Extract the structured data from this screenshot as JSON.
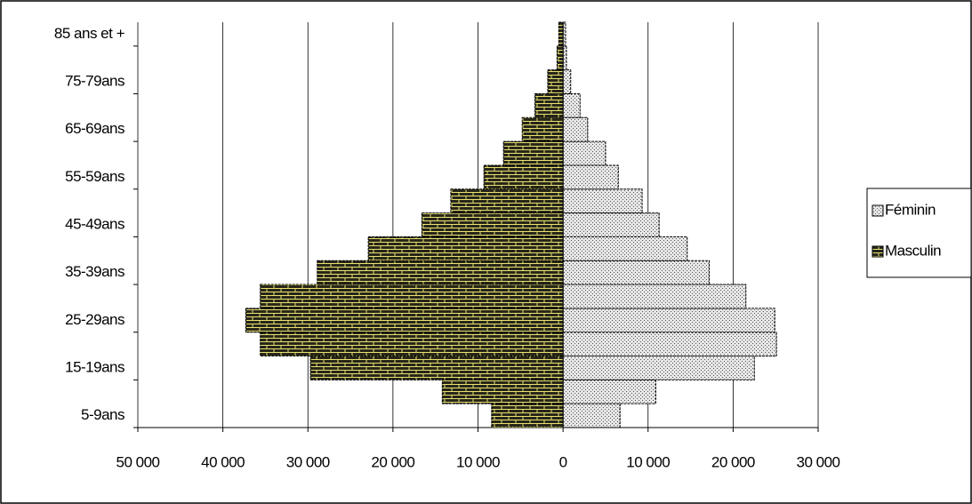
{
  "chart_data": {
    "type": "bar",
    "orientation": "horizontal",
    "categories": [
      "5-9ans",
      null,
      "15-19ans",
      null,
      "25-29ans",
      null,
      "35-39ans",
      null,
      "45-49ans",
      null,
      "55-59ans",
      null,
      "65-69ans",
      null,
      "75-79ans",
      null,
      "85 ans et +"
    ],
    "series": [
      {
        "name": "Féminin",
        "color": "#e6e6e6",
        "values": [
          6700,
          10900,
          22500,
          25100,
          24900,
          21500,
          17200,
          14600,
          11300,
          9300,
          6500,
          5000,
          2900,
          2000,
          900,
          400,
          300
        ]
      },
      {
        "name": "Masculin",
        "color": "#26261a",
        "values": [
          -8400,
          -14200,
          -29700,
          -35600,
          -37300,
          -35600,
          -28900,
          -22900,
          -16600,
          -13200,
          -9300,
          -7000,
          -4800,
          -3300,
          -1800,
          -700,
          -500
        ]
      }
    ],
    "xlim": [
      -50000,
      30000
    ],
    "xticks": [
      {
        "value": -50000,
        "label": "50 000"
      },
      {
        "value": -40000,
        "label": "40 000"
      },
      {
        "value": -30000,
        "label": "30 000"
      },
      {
        "value": -20000,
        "label": "20 000"
      },
      {
        "value": -10000,
        "label": "10 000"
      },
      0,
      {
        "value": 10000,
        "label": "10 000"
      },
      {
        "value": 20000,
        "label": "20 000"
      },
      {
        "value": 30000,
        "label": "30 000"
      }
    ],
    "grid": true,
    "legend": "right"
  }
}
